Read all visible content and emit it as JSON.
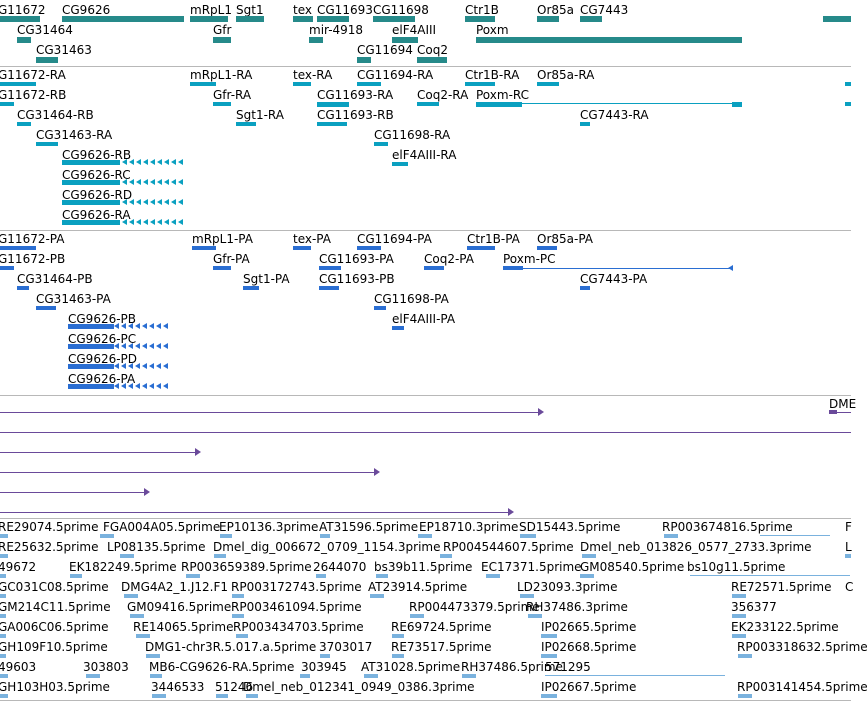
{
  "colors": {
    "gene": "#268a8a",
    "transcript": "#0aa0c0",
    "protein": "#2a6ed2",
    "alignment": "#6a4a9a",
    "est": "#7ab2de"
  },
  "gene_track": {
    "labels": [
      "G11672",
      "CG9626",
      "mRpL1",
      "Sgt1",
      "tex",
      "CG11693",
      "CG11698",
      "Ctr1B",
      "Or85a",
      "CG7443",
      "CG31464",
      "Gfr",
      "mir-4918",
      "elF4AIII",
      "Poxm",
      "CG31463",
      "CG11694",
      "Coq2"
    ]
  },
  "transcript_track": {
    "labels": [
      "G11672-RA",
      "mRpL1-RA",
      "tex-RA",
      "CG11694-RA",
      "Ctr1B-RA",
      "Or85a-RA",
      "G11672-RB",
      "Gfr-RA",
      "CG11693-RA",
      "Coq2-RA",
      "Poxm-RC",
      "CG31464-RB",
      "Sgt1-RA",
      "CG11693-RB",
      "CG7443-RA",
      "CG31463-RA",
      "CG11698-RA",
      "CG9626-RB",
      "elF4AIII-RA",
      "CG9626-RC",
      "CG9626-RD",
      "CG9626-RA"
    ]
  },
  "protein_track": {
    "labels": [
      "G11672-PA",
      "mRpL1-PA",
      "tex-PA",
      "CG11694-PA",
      "Ctr1B-PA",
      "Or85a-PA",
      "G11672-PB",
      "Gfr-PA",
      "CG11693-PA",
      "Coq2-PA",
      "Poxm-PC",
      "CG31464-PB",
      "Sgt1-PA",
      "CG11693-PB",
      "CG7443-PA",
      "CG31463-PA",
      "CG11698-PA",
      "CG9626-PB",
      "elF4AIII-PA",
      "CG9626-PC",
      "CG9626-PD",
      "CG9626-PA"
    ]
  },
  "alignment_track": {
    "labels": [
      "DME"
    ]
  },
  "est_track": {
    "labels": [
      "RE29074.5prime",
      "FGA004A05.5prime",
      "EP10136.3prime",
      "AT31596.5prime",
      "EP18710.3prime",
      "SD15443.5prime",
      "RP003674816.5prime",
      "F",
      "RE25632.5prime",
      "LP08135.5prime",
      "Dmel_dig_006672_0709_1154.3prime",
      "RP004544607.5prime",
      "Dmel_neb_013826_0577_2733.3prime",
      "L",
      "49672",
      "EK182249.5prime",
      "RP003659389.5prime",
      "2644070",
      "bs39b11.5prime",
      "EC17371.5prime",
      "GM08540.5prime",
      "bs10g11.5prime",
      "GC031C08.5prime",
      "DMG4A2_1.J12.F1",
      "RP003172743.5prime",
      "AT23914.5prime",
      "LD23093.3prime",
      "RE72571.5prime",
      "C",
      "GM214C11.5prime",
      "GM09416.5prime",
      "RP003461094.5prime",
      "RP004473379.5prime",
      "RH37486.3prime",
      "356377",
      "GA006C06.5prime",
      "RE14065.5prime",
      "RP003434703.5prime",
      "RE69724.5prime",
      "IP02665.5prime",
      "EK233122.5prime",
      "GH109F10.5prime",
      "DMG1-chr3R.5.017.a.5prime",
      "3703017",
      "RE73517.5prime",
      "IP02668.5prime",
      "RP003318632.5prime",
      "49603",
      "303803",
      "MB6-CG9626-RA.5prime",
      "303945",
      "AT31028.5prime",
      "RH37486.5prime",
      "571295",
      "GH103H03.5prime",
      "3446533",
      "51246",
      "Dmel_neb_012341_0949_0386.3prime",
      "IP02667.5prime",
      "RP003141454.5prime"
    ]
  }
}
